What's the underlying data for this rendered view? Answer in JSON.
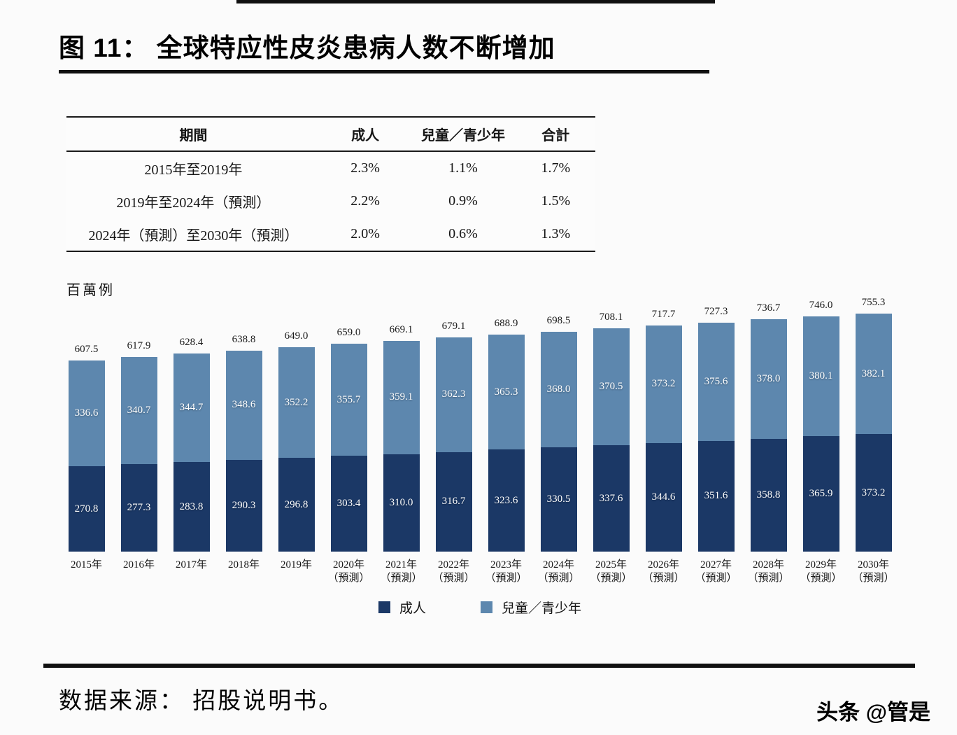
{
  "title": "图 11： 全球特应性皮炎患病人数不断增加",
  "table": {
    "headers": [
      "期間",
      "成人",
      "兒童／青少年",
      "合計"
    ],
    "rows": [
      [
        "2015年至2019年",
        "2.3%",
        "1.1%",
        "1.7%"
      ],
      [
        "2019年至2024年（預測）",
        "2.2%",
        "0.9%",
        "1.5%"
      ],
      [
        "2024年（預測）至2030年（預測）",
        "2.0%",
        "0.6%",
        "1.3%"
      ]
    ]
  },
  "chart_data": {
    "type": "bar",
    "stacked": true,
    "unit_label": "百萬例",
    "grid": false,
    "legend_position": "bottom",
    "categories": [
      {
        "year": "2015年",
        "note": ""
      },
      {
        "year": "2016年",
        "note": ""
      },
      {
        "year": "2017年",
        "note": ""
      },
      {
        "year": "2018年",
        "note": ""
      },
      {
        "year": "2019年",
        "note": ""
      },
      {
        "year": "2020年",
        "note": "（預測）"
      },
      {
        "year": "2021年",
        "note": "（預測）"
      },
      {
        "year": "2022年",
        "note": "（預測）"
      },
      {
        "year": "2023年",
        "note": "（預測）"
      },
      {
        "year": "2024年",
        "note": "（預測）"
      },
      {
        "year": "2025年",
        "note": "（預測）"
      },
      {
        "year": "2026年",
        "note": "（預測）"
      },
      {
        "year": "2027年",
        "note": "（預測）"
      },
      {
        "year": "2028年",
        "note": "（預測）"
      },
      {
        "year": "2029年",
        "note": "（預測）"
      },
      {
        "year": "2030年",
        "note": "（預測）"
      }
    ],
    "series": [
      {
        "name": "成人",
        "color": "#1b3866",
        "values": [
          270.8,
          277.3,
          283.8,
          290.3,
          296.8,
          303.4,
          310.0,
          316.7,
          323.6,
          330.5,
          337.6,
          344.6,
          351.6,
          358.8,
          365.9,
          373.2
        ]
      },
      {
        "name": "兒童／青少年",
        "color": "#5d87ae",
        "values": [
          336.6,
          340.7,
          344.7,
          348.6,
          352.2,
          355.7,
          359.1,
          362.3,
          365.3,
          368.0,
          370.5,
          373.2,
          375.6,
          378.0,
          380.1,
          382.1
        ]
      }
    ],
    "totals": [
      607.5,
      617.9,
      628.4,
      638.8,
      649.0,
      659.0,
      669.1,
      679.1,
      688.9,
      698.5,
      708.1,
      717.7,
      727.3,
      736.7,
      746.0,
      755.3
    ],
    "legend": [
      "成人",
      "兒童／青少年"
    ]
  },
  "footer": {
    "source": "数据来源： 招股说明书。"
  },
  "watermark": "头条 @管是"
}
